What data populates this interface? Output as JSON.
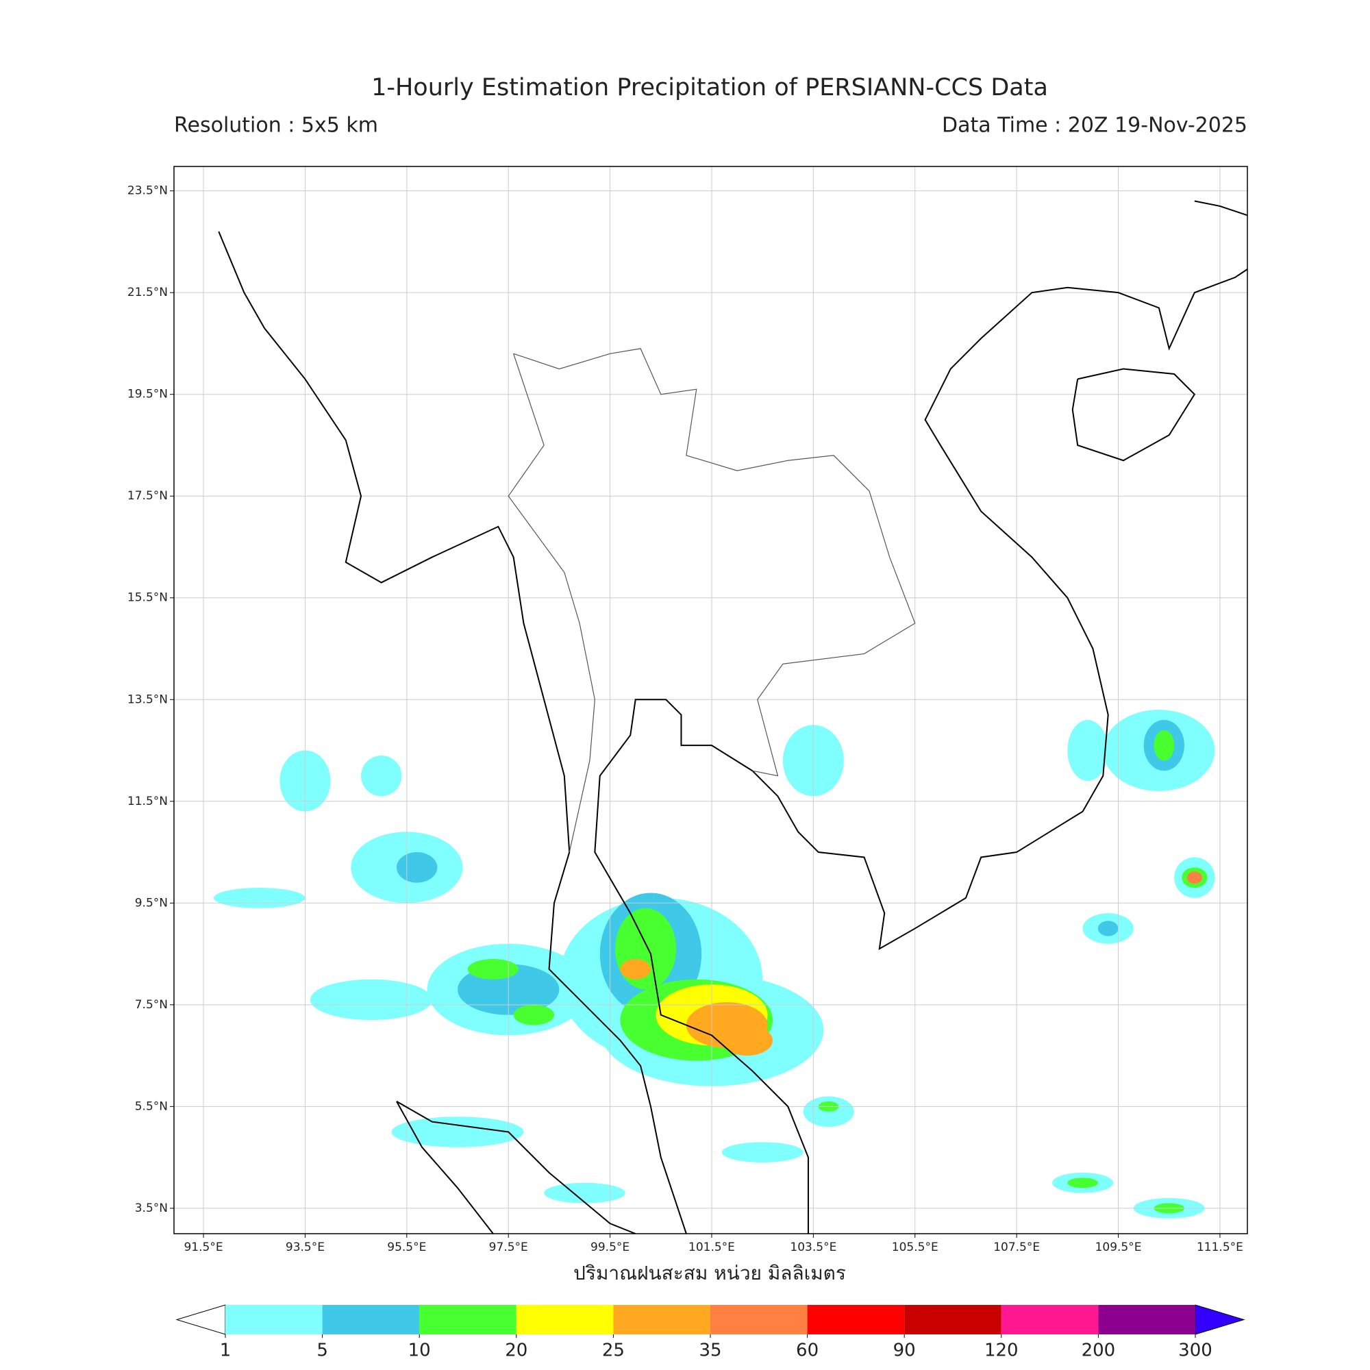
{
  "map": {
    "title": "1-Hourly Estimation Precipitation of PERSIANN-CCS Data",
    "subtitle_left": "Resolution : 5x5 km",
    "subtitle_right": "Data Time : 20Z 19-Nov-2025",
    "xlabel": "ปริมาณฝนสะสม หน่วย มิลลิเมตร",
    "xlim": [
      90.92,
      112.04
    ],
    "ylim": [
      3.0,
      23.98
    ],
    "grid": true,
    "xticks": [
      {
        "value": 91.5,
        "label": "91.5°E"
      },
      {
        "value": 93.5,
        "label": "93.5°E"
      },
      {
        "value": 95.5,
        "label": "95.5°E"
      },
      {
        "value": 97.5,
        "label": "97.5°E"
      },
      {
        "value": 99.5,
        "label": "99.5°E"
      },
      {
        "value": 101.5,
        "label": "101.5°E"
      },
      {
        "value": 103.5,
        "label": "103.5°E"
      },
      {
        "value": 105.5,
        "label": "105.5°E"
      },
      {
        "value": 107.5,
        "label": "107.5°E"
      },
      {
        "value": 109.5,
        "label": "109.5°E"
      },
      {
        "value": 111.5,
        "label": "111.5°E"
      }
    ],
    "yticks": [
      {
        "value": 3.5,
        "label": "3.5°N"
      },
      {
        "value": 5.5,
        "label": "5.5°N"
      },
      {
        "value": 7.5,
        "label": "7.5°N"
      },
      {
        "value": 9.5,
        "label": "9.5°N"
      },
      {
        "value": 11.5,
        "label": "11.5°N"
      },
      {
        "value": 13.5,
        "label": "13.5°N"
      },
      {
        "value": 15.5,
        "label": "15.5°N"
      },
      {
        "value": 17.5,
        "label": "17.5°N"
      },
      {
        "value": 19.5,
        "label": "19.5°N"
      },
      {
        "value": 21.5,
        "label": "21.5°N"
      },
      {
        "value": 23.5,
        "label": "23.5°N"
      }
    ],
    "colorbar": {
      "levels": [
        1,
        5,
        10,
        20,
        25,
        35,
        60,
        90,
        120,
        200,
        300
      ],
      "colors": [
        "#80ffff",
        "#40c8e8",
        "#48ff30",
        "#ffff00",
        "#ffa820",
        "#ff8040",
        "#ff0000",
        "#c80000",
        "#ff1890",
        "#8c0090"
      ],
      "under_color": "#ffffff",
      "over_color": "#3300ff"
    }
  }
}
